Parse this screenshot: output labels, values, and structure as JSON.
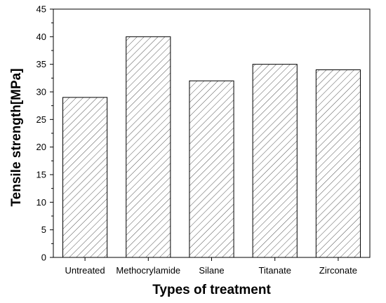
{
  "chart_data": {
    "type": "bar",
    "categories": [
      "Untreated",
      "Methocrylamide",
      "Silane",
      "Titanate",
      "Zirconate"
    ],
    "values": [
      29,
      40,
      32,
      35,
      34
    ],
    "xlabel": "Types of treatment",
    "ylabel": "Tensile strength[MPa]",
    "ylim": [
      0,
      45
    ],
    "yticks": [
      0,
      5,
      10,
      15,
      20,
      25,
      30,
      35,
      40,
      45
    ],
    "bar_fill": "hatched",
    "bar_color": "#555555",
    "grid": false,
    "legend": "none"
  }
}
